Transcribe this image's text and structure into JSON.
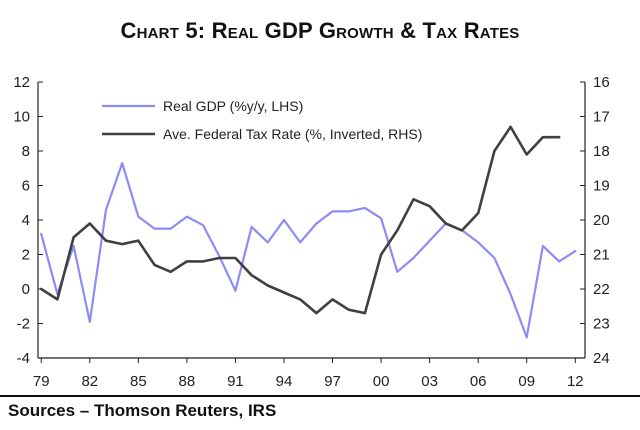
{
  "title": "Chart 5: Real GDP Growth & Tax Rates",
  "source": "Sources – Thomson Reuters, IRS",
  "colors": {
    "gdp": "#8c8cf5",
    "tax": "#404040",
    "axis": "#222222"
  },
  "chart_data": {
    "type": "line",
    "title": "Chart 5: Real GDP Growth & Tax Rates",
    "x_tick_labels": [
      "79",
      "82",
      "85",
      "88",
      "91",
      "94",
      "97",
      "00",
      "03",
      "06",
      "09",
      "12"
    ],
    "x_ticks": [
      1979,
      1982,
      1985,
      1988,
      1991,
      1994,
      1997,
      2000,
      2003,
      2006,
      2009,
      2012
    ],
    "xlim": [
      1978.8,
      2012.6
    ],
    "y_left": {
      "lim": [
        -4,
        12
      ],
      "ticks": [
        -4,
        -2,
        0,
        2,
        4,
        6,
        8,
        10,
        12
      ]
    },
    "y_right": {
      "lim": [
        24,
        16
      ],
      "inverted": true,
      "ticks": [
        16,
        17,
        18,
        19,
        20,
        21,
        22,
        23,
        24
      ]
    },
    "legend_position": "top-left",
    "grid": false,
    "series": [
      {
        "name": "Real GDP (%y/y, LHS)",
        "axis": "left",
        "x": [
          1979,
          1980,
          1981,
          1982,
          1983,
          1984,
          1985,
          1986,
          1987,
          1988,
          1989,
          1990,
          1991,
          1992,
          1993,
          1994,
          1995,
          1996,
          1997,
          1998,
          1999,
          2000,
          2001,
          2002,
          2003,
          2004,
          2005,
          2006,
          2007,
          2008,
          2009,
          2010,
          2011,
          2012
        ],
        "values": [
          3.2,
          -0.3,
          2.5,
          -1.9,
          4.6,
          7.3,
          4.2,
          3.5,
          3.5,
          4.2,
          3.7,
          1.9,
          -0.1,
          3.6,
          2.7,
          4.0,
          2.7,
          3.8,
          4.5,
          4.5,
          4.7,
          4.1,
          1.0,
          1.8,
          2.8,
          3.8,
          3.4,
          2.7,
          1.8,
          -0.3,
          -2.8,
          2.5,
          1.6,
          2.2
        ]
      },
      {
        "name": "Ave. Federal Tax Rate (%, Inverted, RHS)",
        "axis": "right",
        "x": [
          1979,
          1980,
          1981,
          1982,
          1983,
          1984,
          1985,
          1986,
          1987,
          1988,
          1989,
          1990,
          1991,
          1992,
          1993,
          1994,
          1995,
          1996,
          1997,
          1998,
          1999,
          2000,
          2001,
          2002,
          2003,
          2004,
          2005,
          2006,
          2007,
          2008,
          2009,
          2010,
          2011
        ],
        "values": [
          22.0,
          22.3,
          20.5,
          20.1,
          20.6,
          20.7,
          20.6,
          21.3,
          21.5,
          21.2,
          21.2,
          21.1,
          21.1,
          21.6,
          21.9,
          22.1,
          22.3,
          22.7,
          22.3,
          22.6,
          22.7,
          21.0,
          20.3,
          19.4,
          19.6,
          20.1,
          20.3,
          19.8,
          18.0,
          17.3,
          18.1,
          17.6,
          17.6
        ]
      }
    ]
  }
}
